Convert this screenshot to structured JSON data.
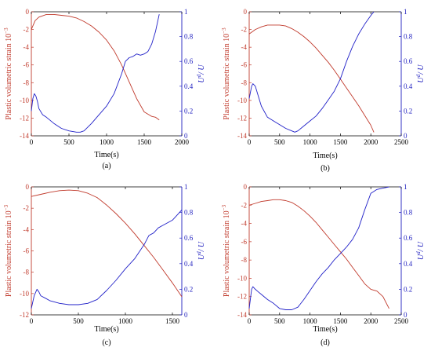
{
  "colors": {
    "left_axis": "#c0392b",
    "right_axis": "#1f1fbf",
    "strain_line": "#c0392b",
    "energy_line": "#2020c8"
  },
  "chart_data": [
    {
      "type": "line",
      "panel_label": "(a)",
      "xlabel": "Time(s)",
      "ylabel_left": "Plastic volumetric strain 10",
      "ylabel_left_exp": "−3",
      "ylabel_right": "U",
      "ylabel_right_sup": "d",
      "ylabel_right_tail": "/ U",
      "xlim": [
        0,
        2000
      ],
      "ylim_left": [
        -14,
        0
      ],
      "ylim_right": [
        0,
        1
      ],
      "xticks": [
        0,
        500,
        1000,
        1500,
        2000
      ],
      "yticks_left": [
        -14,
        -12,
        -10,
        -8,
        -6,
        -4,
        -2,
        0
      ],
      "yticks_right": [
        0,
        0.2,
        0.4,
        0.6,
        0.8,
        1
      ],
      "series": [
        {
          "axis": "left",
          "x": [
            0,
            50,
            100,
            200,
            300,
            400,
            500,
            600,
            700,
            800,
            900,
            1000,
            1100,
            1200,
            1300,
            1400,
            1500,
            1600,
            1650,
            1700
          ],
          "values": [
            -2.0,
            -1.0,
            -0.6,
            -0.3,
            -0.3,
            -0.4,
            -0.5,
            -0.7,
            -1.1,
            -1.6,
            -2.3,
            -3.2,
            -4.4,
            -6.0,
            -7.9,
            -9.8,
            -11.3,
            -11.8,
            -11.9,
            -12.2
          ]
        },
        {
          "axis": "right",
          "x": [
            0,
            20,
            40,
            60,
            80,
            100,
            150,
            200,
            300,
            400,
            500,
            600,
            650,
            700,
            800,
            900,
            1000,
            1100,
            1200,
            1250,
            1300,
            1350,
            1400,
            1450,
            1500,
            1550,
            1600,
            1650,
            1700
          ],
          "values": [
            0.2,
            0.3,
            0.34,
            0.32,
            0.28,
            0.22,
            0.17,
            0.15,
            0.1,
            0.06,
            0.04,
            0.03,
            0.03,
            0.04,
            0.1,
            0.17,
            0.24,
            0.34,
            0.5,
            0.6,
            0.63,
            0.64,
            0.66,
            0.65,
            0.66,
            0.68,
            0.74,
            0.84,
            0.98
          ]
        }
      ]
    },
    {
      "type": "line",
      "panel_label": "(b)",
      "xlabel": "Time(s)",
      "ylabel_left": "Plastic volumetric strain 10",
      "ylabel_left_exp": "−3",
      "ylabel_right": "U",
      "ylabel_right_sup": "d",
      "ylabel_right_tail": "/ U",
      "xlim": [
        0,
        2500
      ],
      "ylim_left": [
        -14,
        0
      ],
      "ylim_right": [
        0,
        1
      ],
      "xticks": [
        0,
        500,
        1000,
        1500,
        2000,
        2500
      ],
      "yticks_left": [
        -14,
        -12,
        -10,
        -8,
        -6,
        -4,
        -2,
        0
      ],
      "yticks_right": [
        0,
        0.2,
        0.4,
        0.6,
        0.8,
        1
      ],
      "series": [
        {
          "axis": "left",
          "x": [
            0,
            100,
            200,
            300,
            400,
            500,
            600,
            700,
            800,
            900,
            1000,
            1100,
            1200,
            1300,
            1400,
            1500,
            1600,
            1700,
            1800,
            1900,
            2000,
            2050
          ],
          "values": [
            -2.5,
            -2.0,
            -1.7,
            -1.5,
            -1.5,
            -1.5,
            -1.6,
            -1.9,
            -2.3,
            -2.8,
            -3.4,
            -4.1,
            -4.9,
            -5.7,
            -6.6,
            -7.6,
            -8.6,
            -9.6,
            -10.6,
            -11.7,
            -12.8,
            -13.6
          ]
        },
        {
          "axis": "right",
          "x": [
            0,
            40,
            60,
            100,
            150,
            200,
            300,
            400,
            500,
            600,
            700,
            750,
            800,
            900,
            1000,
            1100,
            1200,
            1300,
            1400,
            1500,
            1550,
            1600,
            1700,
            1800,
            1900,
            2000,
            2050
          ],
          "values": [
            0.3,
            0.4,
            0.42,
            0.4,
            0.32,
            0.24,
            0.15,
            0.12,
            0.09,
            0.06,
            0.04,
            0.03,
            0.04,
            0.08,
            0.12,
            0.16,
            0.22,
            0.29,
            0.36,
            0.46,
            0.53,
            0.6,
            0.72,
            0.82,
            0.9,
            0.97,
            1.0
          ]
        }
      ]
    },
    {
      "type": "line",
      "panel_label": "(c)",
      "xlabel": "Time(s)",
      "ylabel_left": "Plastic volumetric strain 10",
      "ylabel_left_exp": "−3",
      "ylabel_right": "U",
      "ylabel_right_sup": "d",
      "ylabel_right_tail": "/ U",
      "xlim": [
        0,
        1600
      ],
      "ylim_left": [
        -12,
        0
      ],
      "ylim_right": [
        0,
        1
      ],
      "xticks": [
        0,
        500,
        1000,
        1500
      ],
      "yticks_left": [
        -12,
        -10,
        -8,
        -6,
        -4,
        -2,
        0
      ],
      "yticks_right": [
        0,
        0.2,
        0.4,
        0.6,
        0.8,
        1
      ],
      "series": [
        {
          "axis": "left",
          "x": [
            0,
            100,
            200,
            300,
            400,
            500,
            600,
            700,
            800,
            900,
            1000,
            1100,
            1200,
            1300,
            1400,
            1500,
            1600
          ],
          "values": [
            -0.9,
            -0.7,
            -0.5,
            -0.35,
            -0.3,
            -0.35,
            -0.6,
            -1.0,
            -1.7,
            -2.5,
            -3.4,
            -4.4,
            -5.5,
            -6.6,
            -7.8,
            -9.0,
            -10.3
          ]
        },
        {
          "axis": "right",
          "x": [
            0,
            30,
            60,
            80,
            100,
            150,
            200,
            300,
            400,
            500,
            600,
            700,
            800,
            900,
            1000,
            1100,
            1200,
            1250,
            1300,
            1350,
            1400,
            1450,
            1500,
            1550,
            1600
          ],
          "values": [
            0.05,
            0.15,
            0.2,
            0.18,
            0.15,
            0.13,
            0.11,
            0.09,
            0.08,
            0.08,
            0.09,
            0.12,
            0.19,
            0.27,
            0.36,
            0.44,
            0.55,
            0.62,
            0.64,
            0.68,
            0.7,
            0.72,
            0.74,
            0.78,
            0.82
          ]
        }
      ]
    },
    {
      "type": "line",
      "panel_label": "(d)",
      "xlabel": "Time(s)",
      "ylabel_left": "Plastic volumetric strain 10",
      "ylabel_left_exp": "−3",
      "ylabel_right": "U",
      "ylabel_right_sup": "d",
      "ylabel_right_tail": "/ U",
      "xlim": [
        0,
        2500
      ],
      "ylim_left": [
        -14,
        0
      ],
      "ylim_right": [
        0,
        1
      ],
      "xticks": [
        0,
        500,
        1000,
        1500,
        2000,
        2500
      ],
      "yticks_left": [
        -14,
        -12,
        -10,
        -8,
        -6,
        -4,
        -2,
        0
      ],
      "yticks_right": [
        0,
        0.2,
        0.4,
        0.6,
        0.8,
        1
      ],
      "series": [
        {
          "axis": "left",
          "x": [
            0,
            100,
            200,
            300,
            400,
            500,
            600,
            700,
            800,
            900,
            1000,
            1100,
            1200,
            1300,
            1400,
            1500,
            1600,
            1700,
            1800,
            1900,
            2000,
            2100,
            2200,
            2300
          ],
          "values": [
            -2.0,
            -1.8,
            -1.6,
            -1.5,
            -1.4,
            -1.4,
            -1.5,
            -1.7,
            -2.1,
            -2.6,
            -3.2,
            -3.9,
            -4.7,
            -5.5,
            -6.3,
            -7.1,
            -7.9,
            -8.8,
            -9.7,
            -10.6,
            -11.2,
            -11.4,
            -12.0,
            -13.3
          ]
        },
        {
          "axis": "right",
          "x": [
            0,
            40,
            60,
            100,
            150,
            200,
            300,
            400,
            500,
            600,
            700,
            800,
            900,
            1000,
            1100,
            1200,
            1300,
            1400,
            1500,
            1600,
            1700,
            1800,
            1900,
            2000,
            2100,
            2200,
            2300
          ],
          "values": [
            0.05,
            0.2,
            0.22,
            0.2,
            0.18,
            0.16,
            0.12,
            0.09,
            0.05,
            0.04,
            0.04,
            0.06,
            0.12,
            0.19,
            0.26,
            0.32,
            0.37,
            0.43,
            0.48,
            0.53,
            0.59,
            0.68,
            0.82,
            0.95,
            0.98,
            0.99,
            1.0
          ]
        }
      ]
    }
  ]
}
